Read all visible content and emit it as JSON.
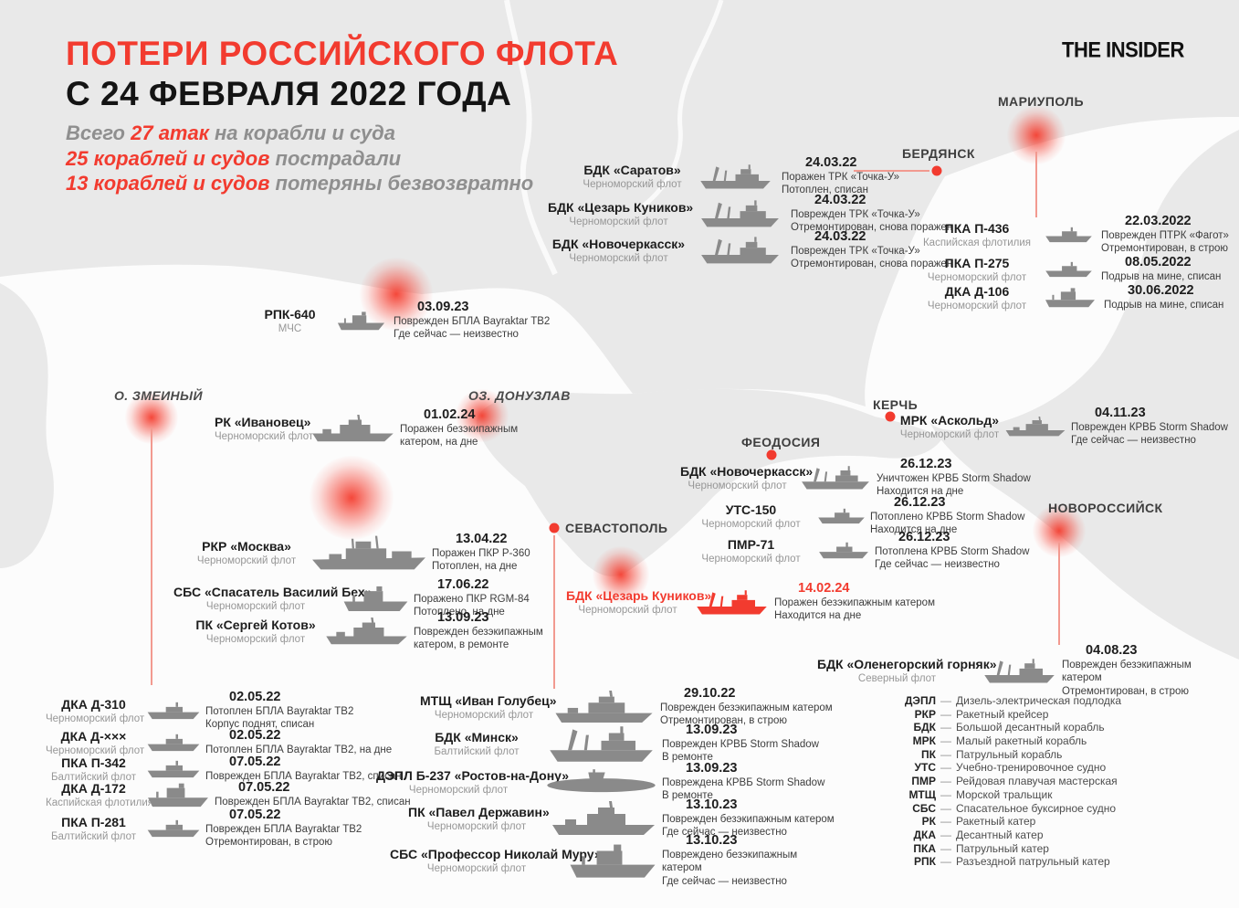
{
  "logo": "THE INSIDER",
  "accent_color": "#F23B2F",
  "header": {
    "title_line1": "ПОТЕРИ РОССИЙСКОГО ФЛОТА",
    "title_line2": "С 24 ФЕВРАЛЯ 2022 ГОДА",
    "stats": [
      {
        "pre": "Всего ",
        "red": "27 атак",
        "post": " на корабли и суда"
      },
      {
        "pre": "",
        "red": "25 кораблей и судов",
        "post": " пострадали"
      },
      {
        "pre": "",
        "red": "13 кораблей и судов",
        "post": " потеряны безвозвратно"
      }
    ]
  },
  "cities": [
    {
      "id": "mariupol",
      "label": "МАРИУПОЛЬ"
    },
    {
      "id": "berdyansk",
      "label": "БЕРДЯНСК"
    },
    {
      "id": "kerch",
      "label": "КЕРЧЬ"
    },
    {
      "id": "feodosia",
      "label": "ФЕОДОСИЯ"
    },
    {
      "id": "sevastopol",
      "label": "СЕВАСТОПОЛЬ"
    },
    {
      "id": "novorossiysk",
      "label": "НОВОРОССИЙСК"
    },
    {
      "id": "zmeiny",
      "label": "О. ЗМЕИНЫЙ"
    },
    {
      "id": "donuzlav",
      "label": "ОЗ. ДОНУЗЛАВ"
    }
  ],
  "entries": [
    {
      "id": "saratov",
      "name": "БДК «Саратов»",
      "fleet": "Черноморский флот",
      "date": "24.03.22",
      "desc": [
        "Поражен ТРК «Точка-У»",
        "Потоплен, списан"
      ],
      "ship": "bdk"
    },
    {
      "id": "kunikov1",
      "name": "БДК «Цезарь Куников»",
      "fleet": "Черноморский флот",
      "date": "24.03.22",
      "desc": [
        "Поврежден ТРК «Точка-У»",
        "Отремонтирован, снова поражен"
      ],
      "ship": "bdk"
    },
    {
      "id": "novocherkassk1",
      "name": "БДК «Новочеркасск»",
      "fleet": "Черноморский флот",
      "date": "24.03.22",
      "desc": [
        "Поврежден ТРК «Точка-У»",
        "Отремонтирован, снова поражен"
      ],
      "ship": "bdk"
    },
    {
      "id": "p436",
      "name": "ПКА П-436",
      "fleet": "Каспийская флотилия",
      "date": "22.03.2022",
      "desc": [
        "Поврежден ПТРК «Фагот»",
        "Отремонтирован, в строю"
      ],
      "ship": "small"
    },
    {
      "id": "p275",
      "name": "ПКА П-275",
      "fleet": "Черноморский флот",
      "date": "08.05.2022",
      "desc": [
        "Подрыв на мине, списан"
      ],
      "ship": "small"
    },
    {
      "id": "d106",
      "name": "ДКА Д-106",
      "fleet": "Черноморский флот",
      "date": "30.06.2022",
      "desc": [
        "Подрыв на мине, списан"
      ],
      "ship": "tug"
    },
    {
      "id": "rpk640",
      "name": "РПК-640",
      "fleet": "МЧС",
      "date": "03.09.23",
      "desc": [
        "Поврежден БПЛА Bayraktar TB2",
        "Где сейчас — неизвестно"
      ],
      "ship": "tug"
    },
    {
      "id": "ivanovets",
      "name": "РК «Ивановец»",
      "fleet": "Черноморский флот",
      "date": "01.02.24",
      "desc": [
        "Поражен безэкипажным",
        "катером, на дне"
      ],
      "ship": "mid"
    },
    {
      "id": "moskva",
      "name": "РКР «Москва»",
      "fleet": "Черноморский флот",
      "date": "13.04.22",
      "desc": [
        "Поражен ПКР Р-360",
        "Потоплен, на дне"
      ],
      "ship": "big"
    },
    {
      "id": "bekh",
      "name": "СБС «Спасатель Василий Бех»",
      "fleet": "Черноморский флот",
      "date": "17.06.22",
      "desc": [
        "Поражено ПКР RGM-84",
        "Потоплено, на дне"
      ],
      "ship": "tug"
    },
    {
      "id": "kotov",
      "name": "ПК «Сергей Котов»",
      "fleet": "Черноморский флот",
      "date": "13.09.23",
      "desc": [
        "Поврежден безэкипажным",
        "катером, в ремонте"
      ],
      "ship": "mid"
    },
    {
      "id": "novocherkassk2",
      "name": "БДК «Новочеркасск»",
      "fleet": "Черноморский флот",
      "date": "26.12.23",
      "desc": [
        "Уничтожен КРВБ Storm Shadow",
        "Находится на дне"
      ],
      "ship": "bdk"
    },
    {
      "id": "uts150",
      "name": "УТС-150",
      "fleet": "Черноморский флот",
      "date": "26.12.23",
      "desc": [
        "Потоплено КРВБ Storm Shadow",
        "Находится на дне"
      ],
      "ship": "small"
    },
    {
      "id": "pmr71",
      "name": "ПМР-71",
      "fleet": "Черноморский флот",
      "date": "26.12.23",
      "desc": [
        "Потоплена КРВБ Storm Shadow",
        "Где сейчас — неизвестно"
      ],
      "ship": "small"
    },
    {
      "id": "askold",
      "name": "МРК «Аскольд»",
      "fleet": "Черноморский флот",
      "date": "04.11.23",
      "desc": [
        "Поврежден КРВБ Storm Shadow",
        "Где сейчас — неизвестно"
      ],
      "ship": "mid"
    },
    {
      "id": "kunikov2",
      "name": "БДК «Цезарь Куников»",
      "fleet": "Черноморский флот",
      "date": "14.02.24",
      "desc": [
        "Поражен безэкипажным катером",
        "Находится на дне"
      ],
      "ship": "bdk",
      "red": true
    },
    {
      "id": "olenegorsky",
      "name": "БДК «Оленегорский горняк»",
      "fleet": "Северный флот",
      "date": "04.08.23",
      "desc": [
        "Поврежден безэкипажным катером",
        "Отремонтирован, в строю"
      ],
      "ship": "bdk"
    },
    {
      "id": "d310",
      "name": "ДКА Д-310",
      "fleet": "Черноморский флот",
      "date": "02.05.22",
      "desc": [
        "Потоплен БПЛА Bayraktar TB2",
        "Корпус поднят, списан"
      ],
      "ship": "small"
    },
    {
      "id": "dxxx",
      "name": "ДКА Д-×××",
      "fleet": "Черноморский флот",
      "date": "02.05.22",
      "desc": [
        "Потоплен БПЛА Bayraktar TB2, на дне"
      ],
      "ship": "small"
    },
    {
      "id": "p342",
      "name": "ПКА П-342",
      "fleet": "Балтийский флот",
      "date": "07.05.22",
      "desc": [
        "Поврежден БПЛА Bayraktar TB2, списан"
      ],
      "ship": "small"
    },
    {
      "id": "d172",
      "name": "ДКА Д-172",
      "fleet": "Каспийская флотилия",
      "date": "07.05.22",
      "desc": [
        "Поврежден БПЛА Bayraktar TB2, списан"
      ],
      "ship": "tug"
    },
    {
      "id": "p281",
      "name": "ПКА П-281",
      "fleet": "Балтийский флот",
      "date": "07.05.22",
      "desc": [
        "Поврежден БПЛА Bayraktar TB2",
        "Отремонтирован, в строю"
      ],
      "ship": "small"
    },
    {
      "id": "golubets",
      "name": "МТЩ «Иван Голубец»",
      "fleet": "Черноморский флот",
      "date": "29.10.22",
      "desc": [
        "Поврежден безэкипажным катером",
        "Отремонтирован, в строю"
      ],
      "ship": "mid"
    },
    {
      "id": "minsk",
      "name": "БДК «Минск»",
      "fleet": "Балтийский флот",
      "date": "13.09.23",
      "desc": [
        "Поврежден КРВБ Storm Shadow",
        "В ремонте"
      ],
      "ship": "bdk"
    },
    {
      "id": "rostov",
      "name": "ДЭПЛ Б-237 «Ростов-на-Дону»",
      "fleet": "Черноморский флот",
      "date": "13.09.23",
      "desc": [
        "Повреждена КРВБ Storm Shadow",
        "В ремонте"
      ],
      "ship": "sub"
    },
    {
      "id": "derzhavin",
      "name": "ПК «Павел Державин»",
      "fleet": "Черноморский флот",
      "date": "13.10.23",
      "desc": [
        "Поврежден безэкипажным катером",
        "Где сейчас — неизвестно"
      ],
      "ship": "mid"
    },
    {
      "id": "muru",
      "name": "СБС «Профессор Николай Муру»",
      "fleet": "Черноморский флот",
      "date": "13.10.23",
      "desc": [
        "Повреждено безэкипажным катером",
        "Где сейчас — неизвестно"
      ],
      "ship": "tug"
    }
  ],
  "legend": {
    "items": [
      {
        "abbr": "ДЭПЛ",
        "desc": "Дизель-электрическая подлодка"
      },
      {
        "abbr": "РКР",
        "desc": "Ракетный крейсер"
      },
      {
        "abbr": "БДК",
        "desc": "Большой десантный корабль"
      },
      {
        "abbr": "МРК",
        "desc": "Малый ракетный корабль"
      },
      {
        "abbr": "ПК",
        "desc": "Патрульный корабль"
      },
      {
        "abbr": "УТС",
        "desc": "Учебно-тренировочное судно"
      },
      {
        "abbr": "ПМР",
        "desc": "Рейдовая плавучая мастерская"
      },
      {
        "abbr": "МТЩ",
        "desc": "Морской тральщик"
      },
      {
        "abbr": "СБС",
        "desc": "Спасательное буксирное судно"
      },
      {
        "abbr": "РК",
        "desc": "Ракетный катер"
      },
      {
        "abbr": "ДКА",
        "desc": "Десантный катер"
      },
      {
        "abbr": "ПКА",
        "desc": "Патрульный катер"
      },
      {
        "abbr": "РПК",
        "desc": "Разъездной патрульный катер"
      }
    ]
  }
}
